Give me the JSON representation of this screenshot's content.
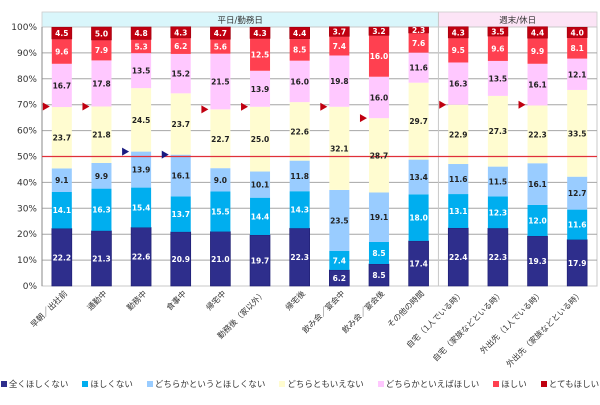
{
  "chart_data": {
    "type": "bar",
    "stacked": true,
    "title": "",
    "xlabel": "",
    "ylabel": "",
    "ylim": [
      0,
      100
    ],
    "ytick_labels": [
      "0%",
      "10%",
      "20%",
      "30%",
      "40%",
      "50%",
      "60%",
      "70%",
      "80%",
      "90%",
      "100%"
    ],
    "grid": true,
    "reference_line": {
      "value": 50,
      "color": "#e0303a"
    },
    "groups": [
      {
        "label": "平日/勤務日",
        "from": 0,
        "to": 9,
        "color": "#d9f6fb"
      },
      {
        "label": "週末/休日",
        "from": 10,
        "to": 13,
        "color": "#fce4f6"
      }
    ],
    "categories": [
      "早朝／出社前",
      "通勤中",
      "勤務中",
      "食事中",
      "帰宅中",
      "勤務後（家以外）",
      "帰宅後",
      "飲み会／宴会中",
      "飲み会／宴会後",
      "その他の時間",
      "自宅（1人でいる時）",
      "自宅（家族などといる時）",
      "外出先（1人でいる時）",
      "外出先（家族などといる時）"
    ],
    "series": [
      {
        "name": "全くほしくない",
        "color": "#2e2e8c",
        "label_color": "#ffffff",
        "values": [
          22.2,
          21.3,
          22.6,
          20.9,
          21.0,
          19.7,
          22.3,
          6.2,
          8.5,
          17.4,
          22.4,
          22.3,
          19.3,
          17.9
        ]
      },
      {
        "name": "ほしくない",
        "color": "#00aeef",
        "label_color": "#ffffff",
        "values": [
          14.1,
          16.3,
          15.4,
          13.7,
          15.5,
          14.4,
          14.3,
          7.4,
          8.5,
          18.0,
          13.1,
          12.3,
          12.0,
          11.6
        ]
      },
      {
        "name": "どちらかというとほしくない",
        "color": "#99ccff",
        "label_color": "#222222",
        "values": [
          9.1,
          9.9,
          13.9,
          16.1,
          9.0,
          10.1,
          11.8,
          23.5,
          19.1,
          13.4,
          11.6,
          11.5,
          16.1,
          12.7
        ]
      },
      {
        "name": "どちらともいえない",
        "color": "#fffcd0",
        "label_color": "#222222",
        "values": [
          23.7,
          21.8,
          24.5,
          23.7,
          22.7,
          25.0,
          22.6,
          32.1,
          28.7,
          29.7,
          22.9,
          27.3,
          22.3,
          33.5
        ]
      },
      {
        "name": "どちらかといえばほしい",
        "color": "#ffc8ff",
        "label_color": "#222222",
        "values": [
          16.7,
          17.8,
          13.5,
          15.2,
          21.5,
          13.9,
          16.0,
          19.8,
          16.0,
          11.6,
          16.3,
          13.5,
          16.1,
          12.1
        ]
      },
      {
        "name": "ほしい",
        "color": "#ff4050",
        "label_color": "#ffffff",
        "values": [
          9.6,
          7.9,
          5.3,
          6.2,
          5.6,
          12.5,
          8.5,
          7.4,
          16.0,
          7.6,
          9.5,
          9.6,
          9.9,
          8.1
        ]
      },
      {
        "name": "とてもほしい",
        "color": "#c00010",
        "label_color": "#ffffff",
        "values": [
          4.5,
          5.0,
          4.8,
          4.3,
          4.7,
          4.3,
          4.4,
          3.7,
          3.2,
          2.3,
          4.3,
          3.5,
          4.4,
          4.0
        ]
      }
    ],
    "markers": [
      {
        "category_index": 0,
        "value": 69.3,
        "color": "#c00010",
        "shape": "triangle-right"
      },
      {
        "category_index": 1,
        "value": 69.3,
        "color": "#c00010",
        "shape": "triangle-right"
      },
      {
        "category_index": 2,
        "value": 51.9,
        "color": "#1a1a80",
        "shape": "triangle-right"
      },
      {
        "category_index": 3,
        "value": 50.7,
        "color": "#1a1a80",
        "shape": "triangle-right"
      },
      {
        "category_index": 4,
        "value": 68.2,
        "color": "#c00010",
        "shape": "triangle-right"
      },
      {
        "category_index": 5,
        "value": 69.2,
        "color": "#c00010",
        "shape": "triangle-right"
      },
      {
        "category_index": 7,
        "value": 69.2,
        "color": "#c00010",
        "shape": "triangle-right"
      },
      {
        "category_index": 8,
        "value": 64.8,
        "color": "#c00010",
        "shape": "triangle-right"
      },
      {
        "category_index": 10,
        "value": 70.0,
        "color": "#c00010",
        "shape": "triangle-right"
      },
      {
        "category_index": 12,
        "value": 70.0,
        "color": "#c00010",
        "shape": "triangle-right"
      }
    ],
    "legend_position": "bottom"
  }
}
